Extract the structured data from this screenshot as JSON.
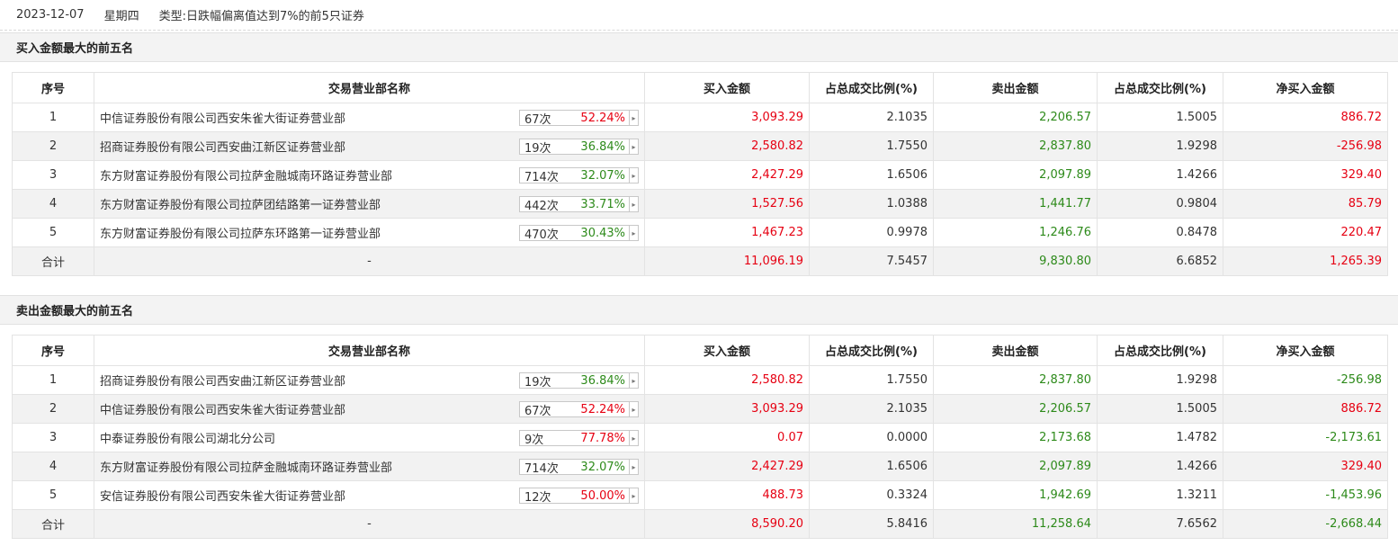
{
  "header": {
    "date": "2023-12-07",
    "weekday": "星期四",
    "type_label": "类型:",
    "type_value": "日跌幅偏离值达到7%的前5只证券"
  },
  "colors": {
    "red": "#e60012",
    "green": "#2d8a1a"
  },
  "columns": [
    "序号",
    "交易营业部名称",
    "买入金额",
    "占总成交比例(%)",
    "卖出金额",
    "占总成交比例(%)",
    "净买入金额"
  ],
  "buy_section": {
    "title": "买入金额最大的前五名",
    "rows": [
      {
        "seq": "1",
        "name": "中信证券股份有限公司西安朱雀大街证券营业部",
        "count": "67次",
        "pct": "52.24%",
        "pct_color": "red",
        "buy": "3,093.29",
        "buy_ratio": "2.1035",
        "sell": "2,206.57",
        "sell_ratio": "1.5005",
        "net": "886.72",
        "net_color": "red"
      },
      {
        "seq": "2",
        "name": "招商证券股份有限公司西安曲江新区证券营业部",
        "count": "19次",
        "pct": "36.84%",
        "pct_color": "green",
        "buy": "2,580.82",
        "buy_ratio": "1.7550",
        "sell": "2,837.80",
        "sell_ratio": "1.9298",
        "net": "-256.98",
        "net_color": "red"
      },
      {
        "seq": "3",
        "name": "东方财富证券股份有限公司拉萨金融城南环路证券营业部",
        "count": "714次",
        "pct": "32.07%",
        "pct_color": "green",
        "buy": "2,427.29",
        "buy_ratio": "1.6506",
        "sell": "2,097.89",
        "sell_ratio": "1.4266",
        "net": "329.40",
        "net_color": "red"
      },
      {
        "seq": "4",
        "name": "东方财富证券股份有限公司拉萨团结路第一证券营业部",
        "count": "442次",
        "pct": "33.71%",
        "pct_color": "green",
        "buy": "1,527.56",
        "buy_ratio": "1.0388",
        "sell": "1,441.77",
        "sell_ratio": "0.9804",
        "net": "85.79",
        "net_color": "red"
      },
      {
        "seq": "5",
        "name": "东方财富证券股份有限公司拉萨东环路第一证券营业部",
        "count": "470次",
        "pct": "30.43%",
        "pct_color": "green",
        "buy": "1,467.23",
        "buy_ratio": "0.9978",
        "sell": "1,246.76",
        "sell_ratio": "0.8478",
        "net": "220.47",
        "net_color": "red"
      }
    ],
    "total": {
      "label": "合计",
      "name": "-",
      "buy": "11,096.19",
      "buy_ratio": "7.5457",
      "sell": "9,830.80",
      "sell_ratio": "6.6852",
      "net": "1,265.39",
      "net_color": "red"
    }
  },
  "sell_section": {
    "title": "卖出金额最大的前五名",
    "rows": [
      {
        "seq": "1",
        "name": "招商证券股份有限公司西安曲江新区证券营业部",
        "count": "19次",
        "pct": "36.84%",
        "pct_color": "green",
        "buy": "2,580.82",
        "buy_ratio": "1.7550",
        "sell": "2,837.80",
        "sell_ratio": "1.9298",
        "net": "-256.98",
        "net_color": "green"
      },
      {
        "seq": "2",
        "name": "中信证券股份有限公司西安朱雀大街证券营业部",
        "count": "67次",
        "pct": "52.24%",
        "pct_color": "red",
        "buy": "3,093.29",
        "buy_ratio": "2.1035",
        "sell": "2,206.57",
        "sell_ratio": "1.5005",
        "net": "886.72",
        "net_color": "red"
      },
      {
        "seq": "3",
        "name": "中泰证券股份有限公司湖北分公司",
        "count": "9次",
        "pct": "77.78%",
        "pct_color": "red",
        "buy": "0.07",
        "buy_ratio": "0.0000",
        "sell": "2,173.68",
        "sell_ratio": "1.4782",
        "net": "-2,173.61",
        "net_color": "green"
      },
      {
        "seq": "4",
        "name": "东方财富证券股份有限公司拉萨金融城南环路证券营业部",
        "count": "714次",
        "pct": "32.07%",
        "pct_color": "green",
        "buy": "2,427.29",
        "buy_ratio": "1.6506",
        "sell": "2,097.89",
        "sell_ratio": "1.4266",
        "net": "329.40",
        "net_color": "red"
      },
      {
        "seq": "5",
        "name": "安信证券股份有限公司西安朱雀大街证券营业部",
        "count": "12次",
        "pct": "50.00%",
        "pct_color": "red",
        "buy": "488.73",
        "buy_ratio": "0.3324",
        "sell": "1,942.69",
        "sell_ratio": "1.3211",
        "net": "-1,453.96",
        "net_color": "green"
      }
    ],
    "total": {
      "label": "合计",
      "name": "-",
      "buy": "8,590.20",
      "buy_ratio": "5.8416",
      "sell": "11,258.64",
      "sell_ratio": "7.6562",
      "net": "-2,668.44",
      "net_color": "green"
    }
  }
}
